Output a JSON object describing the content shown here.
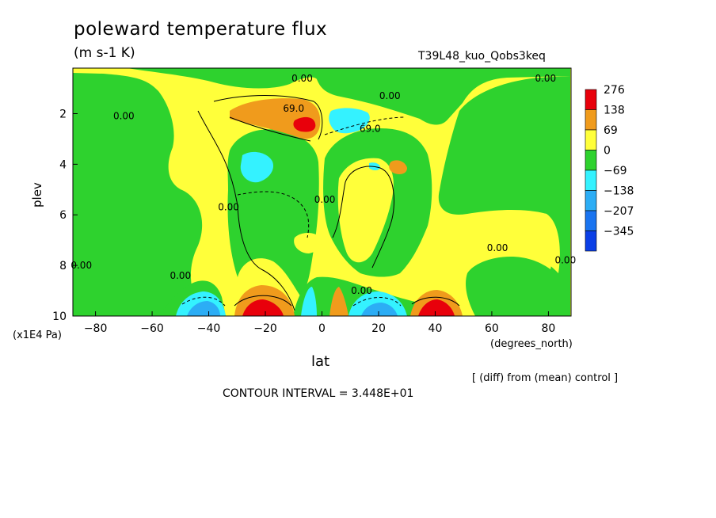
{
  "title": "poleward temperature flux",
  "units": "(m s-1 K)",
  "run_label": "T39L48_kuo_Qobs3keq",
  "yunit": "(x1E4 Pa)",
  "xunit": "(degrees_north)",
  "diff_note": "[ (diff) from (mean) control ]",
  "contour_interval": "CONTOUR INTERVAL = 3.448E+01",
  "colors": {
    "c276": "#e8000b",
    "c138": "#f09b1c",
    "c69": "#ffff3a",
    "c0": "#2ed22e",
    "cm69": "#34f2ff",
    "cm138": "#2cadf5",
    "cm207": "#1a74f0",
    "cm345": "#0b3fe6"
  },
  "chart_data": {
    "type": "heatmap",
    "title": "poleward temperature flux",
    "xlabel": "lat",
    "ylabel": "plev",
    "xlim": [
      -88,
      88
    ],
    "ylim": [
      10,
      0.2
    ],
    "x_ticks": [
      -80,
      -60,
      -40,
      -20,
      0,
      20,
      40,
      60,
      80
    ],
    "x_tick_labels": [
      "-80",
      "-60",
      "-40",
      "-20",
      "0",
      "20",
      "40",
      "60",
      "80"
    ],
    "y_ticks": [
      2,
      4,
      6,
      8,
      10
    ],
    "y_tick_labels": [
      "2",
      "4",
      "6",
      "8",
      "10"
    ],
    "legend_levels": [
      "276",
      "138",
      "69",
      "0",
      "-69",
      "-138",
      "-207",
      "-345"
    ],
    "contour_labels": [
      {
        "text": "0.00",
        "x": -7,
        "y": 0.6
      },
      {
        "text": "0.00",
        "x": 79,
        "y": 0.6
      },
      {
        "text": "0.00",
        "x": -70,
        "y": 2.1
      },
      {
        "text": "69.0",
        "x": -10,
        "y": 1.8
      },
      {
        "text": "0.00",
        "x": 24,
        "y": 1.3
      },
      {
        "text": "69.0",
        "x": 17,
        "y": 2.6
      },
      {
        "text": "0.00",
        "x": 1,
        "y": 5.4
      },
      {
        "text": "0.00",
        "x": -33,
        "y": 5.7
      },
      {
        "text": "0.00",
        "x": 62,
        "y": 7.3
      },
      {
        "text": "0.00",
        "x": 86,
        "y": 7.8
      },
      {
        "text": "0.00",
        "x": -85,
        "y": 8.0
      },
      {
        "text": "0.00",
        "x": -50,
        "y": 8.4
      },
      {
        "text": "0.00",
        "x": 14,
        "y": 9.0
      }
    ]
  }
}
